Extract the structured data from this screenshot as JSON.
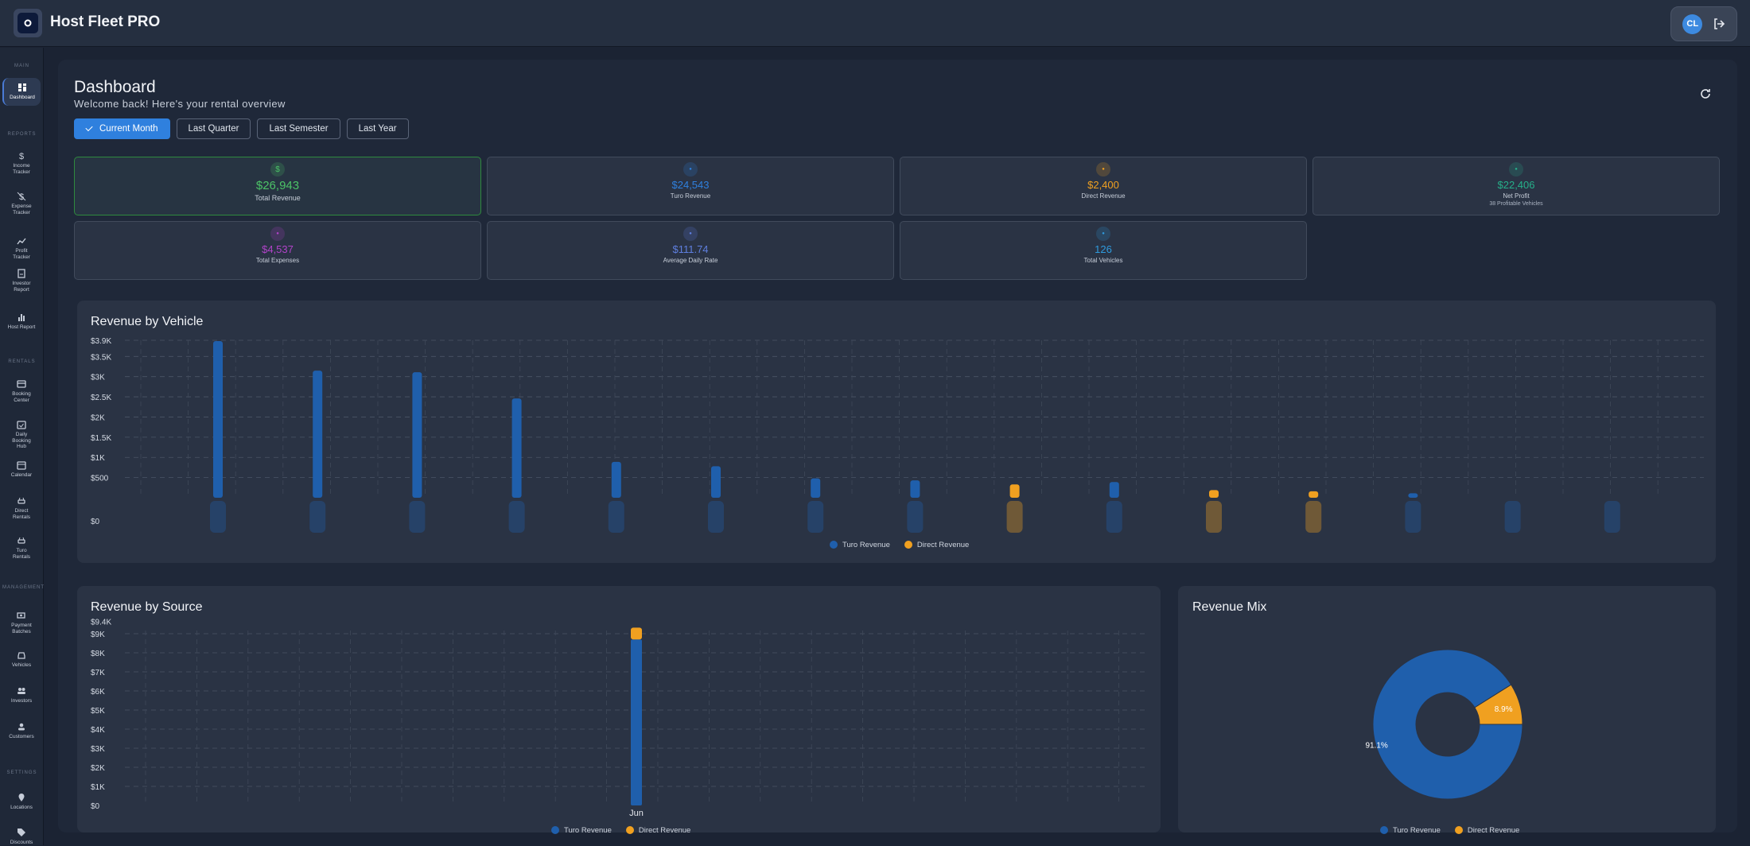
{
  "app": {
    "title": "Host Fleet PRO",
    "user_initials": "CL"
  },
  "sidebar": {
    "sections": [
      "MAIN",
      "REPORTS",
      "RENTALS",
      "MANAGEMENT",
      "SETTINGS"
    ],
    "items": [
      {
        "label": "Dashboard",
        "icon": "dashboard-icon"
      },
      {
        "label": "Income Tracker",
        "icon": "dollar-icon"
      },
      {
        "label": "Expense Tracker",
        "icon": "dollar-off-icon"
      },
      {
        "label": "Profit Tracker",
        "icon": "trend-icon"
      },
      {
        "label": "Investor Report",
        "icon": "report-icon"
      },
      {
        "label": "Host Report",
        "icon": "bar-chart-icon"
      },
      {
        "label": "Booking Center",
        "icon": "card-icon"
      },
      {
        "label": "Daily Booking Hub",
        "icon": "calendar-check-icon"
      },
      {
        "label": "Calendar",
        "icon": "calendar-icon"
      },
      {
        "label": "Direct Rentals",
        "icon": "car-key-icon"
      },
      {
        "label": "Turo Rentals",
        "icon": "car-key-icon"
      },
      {
        "label": "Payment Batches",
        "icon": "payments-icon"
      },
      {
        "label": "Vehicles",
        "icon": "car-icon"
      },
      {
        "label": "Investors",
        "icon": "people-icon"
      },
      {
        "label": "Customers",
        "icon": "person-icon"
      },
      {
        "label": "Locations",
        "icon": "pin-icon"
      },
      {
        "label": "Discounts",
        "icon": "tag-icon"
      }
    ]
  },
  "header": {
    "title": "Dashboard",
    "subtitle": "Welcome back! Here's your rental overview"
  },
  "filters": [
    "Current Month",
    "Last Quarter",
    "Last Semester",
    "Last Year"
  ],
  "filters_active": "Current Month",
  "cards": [
    {
      "value": "$26,943",
      "label": "Total Revenue",
      "icon": "dollar-icon",
      "color": "#4cc267"
    },
    {
      "value": "$24,543",
      "label": "Turo Revenue",
      "icon": "car-icon",
      "color": "#2f80de"
    },
    {
      "value": "$2,400",
      "label": "Direct Revenue",
      "icon": "store-icon",
      "color": "#f0a020"
    },
    {
      "value": "$22,406",
      "label": "Net Profit",
      "extra": "38 Profitable Vehicles",
      "icon": "trend-icon",
      "color": "#26b08a"
    },
    {
      "value": "$4,537",
      "label": "Total Expenses",
      "icon": "receipt-icon",
      "color": "#b143c9"
    },
    {
      "value": "$111.74",
      "label": "Average Daily Rate",
      "icon": "speed-icon",
      "color": "#5f7fe0"
    },
    {
      "value": "126",
      "label": "Total Vehicles",
      "icon": "car-icon",
      "color": "#2f9bde"
    }
  ],
  "panels": {
    "vehicle": "Revenue by Vehicle",
    "source": "Revenue by Source",
    "mix": "Revenue Mix"
  },
  "legend": {
    "turo": "Turo Revenue",
    "direct": "Direct Revenue"
  },
  "colors": {
    "turo": "#1f5fac",
    "direct": "#f0a020"
  },
  "chart_data": [
    {
      "type": "bar",
      "title": "Revenue by Vehicle",
      "ylim": [
        0,
        3900
      ],
      "yticks": [
        "$0",
        "$500",
        "$1K",
        "$1.5K",
        "$2K",
        "$2.5K",
        "$3K",
        "$3.5K",
        "$3.9K"
      ],
      "series": [
        {
          "name": "Turo Revenue",
          "values": [
            3880,
            3150,
            3110,
            2460,
            890,
            780,
            480,
            430,
            0,
            390,
            0,
            0,
            110,
            0,
            0
          ]
        },
        {
          "name": "Direct Revenue",
          "values": [
            0,
            0,
            0,
            0,
            0,
            0,
            0,
            0,
            330,
            0,
            190,
            160,
            0,
            0,
            0
          ]
        }
      ],
      "grid": true,
      "legend": "bottom"
    },
    {
      "type": "bar",
      "title": "Revenue by Source",
      "categories": [
        "Jun"
      ],
      "ylim": [
        0,
        9400
      ],
      "yticks": [
        "$0",
        "$1K",
        "$2K",
        "$3K",
        "$4K",
        "$5K",
        "$6K",
        "$7K",
        "$8K",
        "$9K",
        "$9.4K"
      ],
      "stacked": true,
      "series": [
        {
          "name": "Turo Revenue",
          "values": [
            8700
          ]
        },
        {
          "name": "Direct Revenue",
          "values": [
            620
          ]
        }
      ],
      "grid": true,
      "legend": "bottom"
    },
    {
      "type": "pie",
      "title": "Revenue Mix",
      "donut": true,
      "slices": [
        {
          "name": "Turo Revenue",
          "value": 91.1,
          "label": "91.1%"
        },
        {
          "name": "Direct Revenue",
          "value": 8.9,
          "label": "8.9%"
        }
      ],
      "legend": "bottom"
    }
  ]
}
